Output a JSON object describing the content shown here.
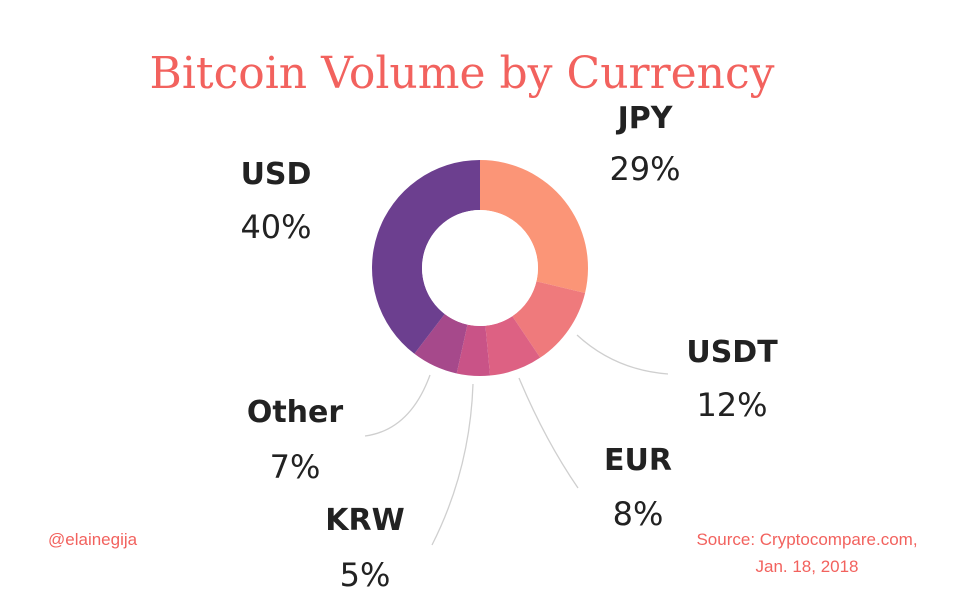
{
  "chart_data": {
    "type": "pie",
    "title": "Bitcoin Volume by Currency",
    "categories": [
      "JPY",
      "USDT",
      "EUR",
      "KRW",
      "Other",
      "USD"
    ],
    "values": [
      29,
      12,
      8,
      5,
      7,
      40
    ],
    "value_labels": [
      "29%",
      "12%",
      "8%",
      "5%",
      "7%",
      "40%"
    ],
    "colors": [
      "#fb9577",
      "#ef7a7c",
      "#dd6183",
      "#c95387",
      "#a6498b",
      "#6c3f8f"
    ],
    "inner_color": "#ffffff"
  },
  "footer": {
    "author": "@elainegija",
    "source_line1": "Source: Cryptocompare.com,",
    "source_line2": "Jan. 18, 2018"
  }
}
